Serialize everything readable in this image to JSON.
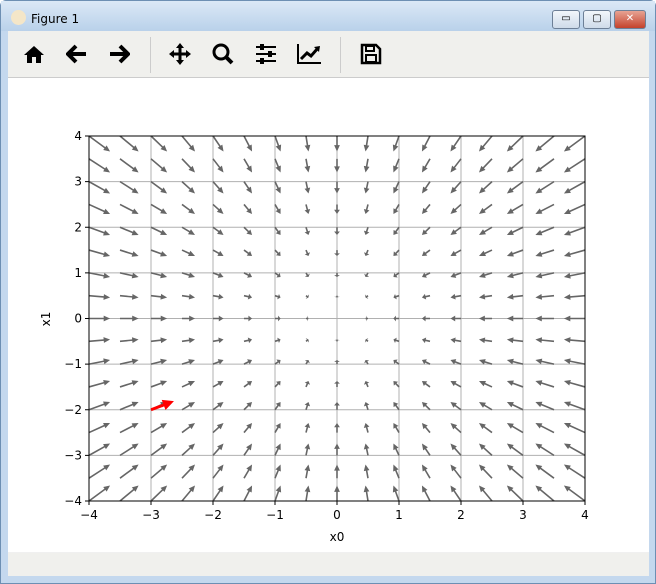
{
  "window": {
    "title": "Figure 1",
    "minimize": "▭",
    "maximize": "▢",
    "close": "✕"
  },
  "toolbar": {
    "buttons": [
      {
        "name": "home",
        "icon": "home-icon"
      },
      {
        "name": "back",
        "icon": "arrow-left-icon"
      },
      {
        "name": "forward",
        "icon": "arrow-right-icon"
      },
      {
        "name": "pan",
        "icon": "move-icon"
      },
      {
        "name": "zoom",
        "icon": "magnifier-icon"
      },
      {
        "name": "subplots",
        "icon": "sliders-icon"
      },
      {
        "name": "edit-axis",
        "icon": "line-chart-icon"
      },
      {
        "name": "save",
        "icon": "floppy-disk-icon"
      }
    ]
  },
  "chart_data": {
    "type": "quiver",
    "xlabel": "x0",
    "ylabel": "x1",
    "xlim": [
      -4,
      4
    ],
    "ylim": [
      -4,
      4
    ],
    "xticks": [
      "−4",
      "−3",
      "−2",
      "−1",
      "0",
      "1",
      "2",
      "3",
      "4"
    ],
    "yticks": [
      "−4",
      "−3",
      "−2",
      "−1",
      "0",
      "1",
      "2",
      "3",
      "4"
    ],
    "grid": true,
    "grid_x": [
      -4,
      -3.5,
      -3,
      -2.5,
      -2,
      -1.5,
      -1,
      -0.5,
      0,
      0.5,
      1,
      1.5,
      2,
      2.5,
      3,
      3.5,
      4
    ],
    "grid_y": [
      -4,
      -3.5,
      -3,
      -2.5,
      -2,
      -1.5,
      -1,
      -0.5,
      0,
      0.5,
      1,
      1.5,
      2,
      2.5,
      3,
      3.5,
      4
    ],
    "u_by_x": [
      0.34,
      0.3,
      0.26,
      0.21,
      0.17,
      0.13,
      0.09,
      0.04,
      0,
      -0.04,
      -0.09,
      -0.13,
      -0.17,
      -0.21,
      -0.26,
      -0.3,
      -0.34
    ],
    "v_by_y": [
      0.34,
      0.3,
      0.26,
      0.21,
      0.17,
      0.13,
      0.09,
      0.04,
      0,
      -0.04,
      -0.09,
      -0.13,
      -0.17,
      -0.21,
      -0.26,
      -0.3,
      -0.34
    ],
    "arrow_color": "#666666",
    "highlight_arrow": {
      "x": -3,
      "y": -2,
      "u": 0.37,
      "v": 0.19,
      "color": "#ff0000"
    }
  }
}
